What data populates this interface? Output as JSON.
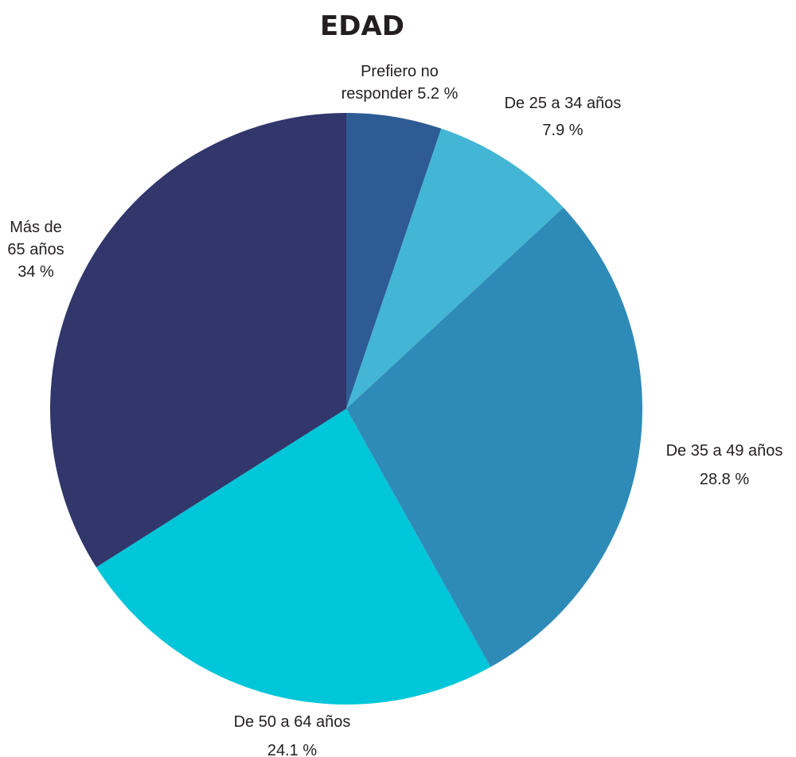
{
  "chart_data": {
    "type": "pie",
    "title": "EDAD",
    "start": "top",
    "direction": "clockwise",
    "slices": [
      {
        "label_lines": [
          "Prefiero no",
          "responder 5.2 %"
        ],
        "value": 5.2,
        "color": "#2e5b94"
      },
      {
        "label_lines": [
          "De 25 a 34 años",
          "7.9 %"
        ],
        "value": 7.9,
        "color": "#42b6d4"
      },
      {
        "label_lines": [
          "De 35 a 49 años",
          "28.8 %"
        ],
        "value": 28.8,
        "color": "#2e8bb8"
      },
      {
        "label_lines": [
          "De 50 a 64 años",
          "24.1 %"
        ],
        "value": 24.1,
        "color": "#00c6da"
      },
      {
        "label_lines": [
          "Más de",
          "65 años",
          "34 %"
        ],
        "value": 34,
        "color": "#31376b"
      }
    ]
  }
}
